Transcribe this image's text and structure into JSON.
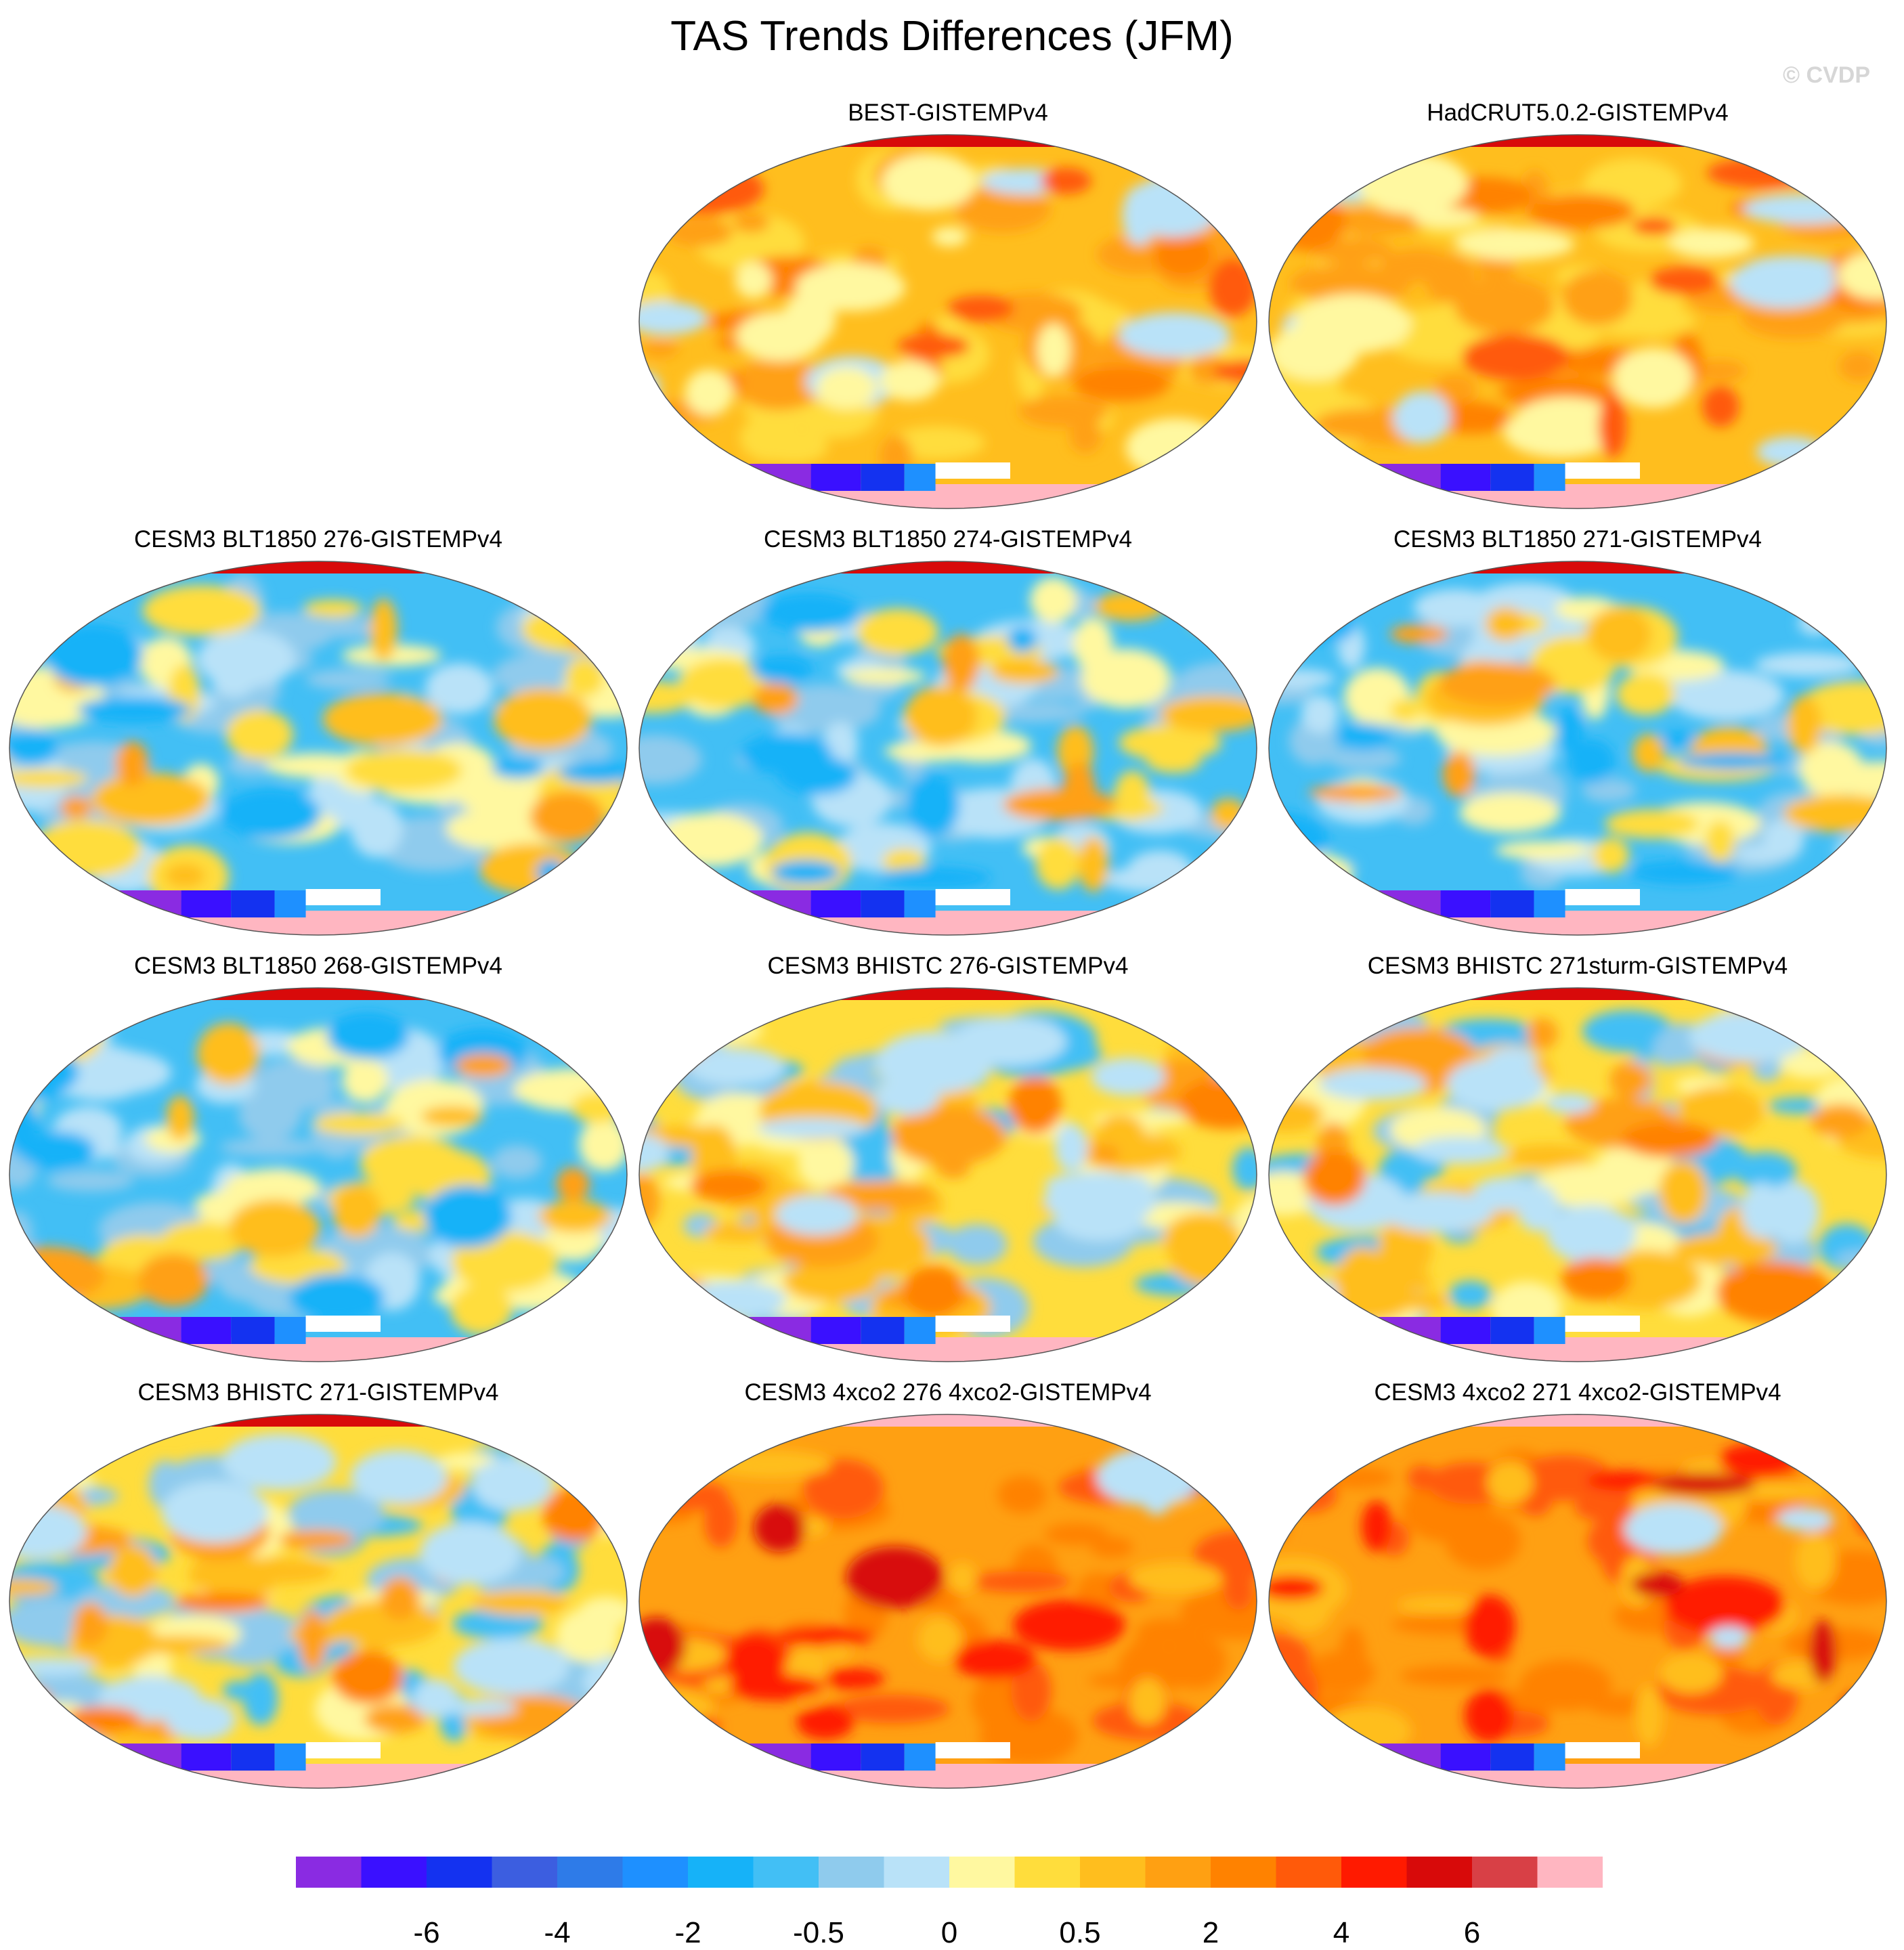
{
  "figure": {
    "title": "TAS Trends Differences (JFM)",
    "copyright": "© CVDP"
  },
  "panels": [
    {
      "title": "BEST-GISTEMPv4",
      "row": 0,
      "col": 1,
      "pattern": "warm"
    },
    {
      "title": "HadCRUT5.0.2-GISTEMPv4",
      "row": 0,
      "col": 2,
      "pattern": "warm"
    },
    {
      "title": "CESM3 BLT1850 276-GISTEMPv4",
      "row": 1,
      "col": 0,
      "pattern": "cool"
    },
    {
      "title": "CESM3 BLT1850 274-GISTEMPv4",
      "row": 1,
      "col": 1,
      "pattern": "cool"
    },
    {
      "title": "CESM3 BLT1850 271-GISTEMPv4",
      "row": 1,
      "col": 2,
      "pattern": "cool"
    },
    {
      "title": "CESM3 BLT1850 268-GISTEMPv4",
      "row": 2,
      "col": 0,
      "pattern": "cool"
    },
    {
      "title": "CESM3 BHISTC 276-GISTEMPv4",
      "row": 2,
      "col": 1,
      "pattern": "mixed"
    },
    {
      "title": "CESM3 BHISTC 271sturm-GISTEMPv4",
      "row": 2,
      "col": 2,
      "pattern": "mixed"
    },
    {
      "title": "CESM3 BHISTC 271-GISTEMPv4",
      "row": 3,
      "col": 0,
      "pattern": "mixed"
    },
    {
      "title": "CESM3 4xco2 276 4xco2-GISTEMPv4",
      "row": 3,
      "col": 1,
      "pattern": "hot"
    },
    {
      "title": "CESM3 4xco2 271 4xco2-GISTEMPv4",
      "row": 3,
      "col": 2,
      "pattern": "hot"
    }
  ],
  "colorbar": {
    "colors": [
      "#8a2be2",
      "#3a10ff",
      "#1432f0",
      "#3c5ee0",
      "#2e7be8",
      "#1e90ff",
      "#16b2f8",
      "#42bff5",
      "#8fcbed",
      "#b9e2f8",
      "#fff8a0",
      "#ffdd3c",
      "#ffbe1e",
      "#ffa012",
      "#ff8200",
      "#ff5a0a",
      "#ff1a00",
      "#d80a0a",
      "#d84046",
      "#ffb6c1"
    ],
    "labels": [
      "-6",
      "-4",
      "-2",
      "-0.5",
      "0",
      "0.5",
      "2",
      "4",
      "6"
    ]
  }
}
